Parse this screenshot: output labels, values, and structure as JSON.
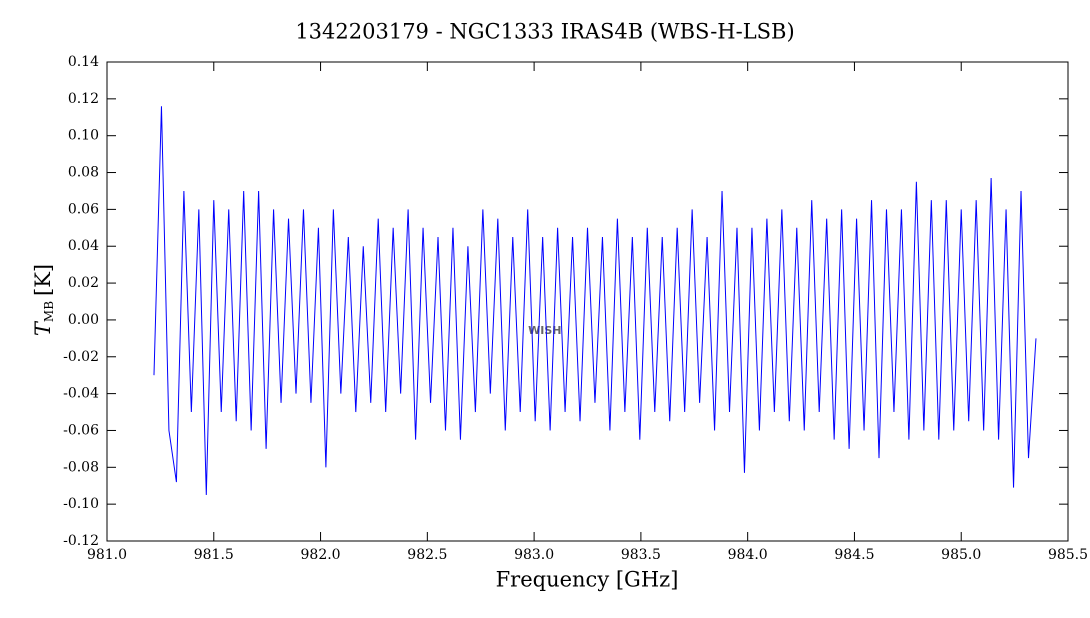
{
  "chart_data": {
    "type": "line",
    "title": "1342203179 - NGC1333 IRAS4B (WBS-H-LSB)",
    "x_label": "Frequency [GHz]",
    "y_label": "T",
    "y_label_sub": "MB",
    "y_label_unit": "[K]",
    "watermark": "WISH",
    "color": "#0000ff",
    "xlim": [
      981.0,
      985.5
    ],
    "xticks": [
      {
        "value": 981.0,
        "label": "981.0"
      },
      981.5,
      {
        "value": 982.0,
        "label": "982.0"
      },
      982.5,
      {
        "value": 983.0,
        "label": "983.0"
      },
      983.5,
      {
        "value": 984.0,
        "label": "984.0"
      },
      984.5,
      {
        "value": 985.0,
        "label": "985.0"
      },
      985.5
    ],
    "ylim": [
      -0.12,
      0.14
    ],
    "yticks": [
      -0.12,
      {
        "value": -0.1,
        "label": "-0.10"
      },
      -0.08,
      -0.06,
      -0.04,
      -0.02,
      {
        "value": 0,
        "label": "0.00"
      },
      0.02,
      0.04,
      0.06,
      0.08,
      {
        "value": 0.1,
        "label": "0.10"
      },
      0.12,
      0.14
    ],
    "x": [
      981.22,
      981.255,
      981.29,
      981.325,
      981.36,
      981.395,
      981.43,
      981.465,
      981.5,
      981.535,
      981.57,
      981.605,
      981.64,
      981.675,
      981.71,
      981.745,
      981.78,
      981.815,
      981.85,
      981.885,
      981.92,
      981.955,
      981.99,
      982.025,
      982.06,
      982.095,
      982.13,
      982.165,
      982.2,
      982.235,
      982.27,
      982.305,
      982.34,
      982.375,
      982.41,
      982.445,
      982.48,
      982.515,
      982.55,
      982.585,
      982.62,
      982.655,
      982.69,
      982.725,
      982.76,
      982.795,
      982.83,
      982.865,
      982.9,
      982.935,
      982.97,
      983.005,
      983.04,
      983.075,
      983.11,
      983.145,
      983.18,
      983.215,
      983.25,
      983.285,
      983.32,
      983.355,
      983.39,
      983.425,
      983.46,
      983.495,
      983.53,
      983.565,
      983.6,
      983.635,
      983.67,
      983.705,
      983.74,
      983.775,
      983.81,
      983.845,
      983.88,
      983.915,
      983.95,
      983.985,
      984.02,
      984.055,
      984.09,
      984.125,
      984.16,
      984.195,
      984.23,
      984.265,
      984.3,
      984.335,
      984.37,
      984.405,
      984.44,
      984.475,
      984.51,
      984.545,
      984.58,
      984.615,
      984.65,
      984.685,
      984.72,
      984.755,
      984.79,
      984.825,
      984.86,
      984.895,
      984.93,
      984.965,
      985.0,
      985.035,
      985.07,
      985.105,
      985.14,
      985.175,
      985.21,
      985.245,
      985.28,
      985.315,
      985.35
    ],
    "values": [
      -0.03,
      0.116,
      -0.06,
      -0.088,
      0.07,
      -0.05,
      0.06,
      -0.095,
      0.065,
      -0.05,
      0.06,
      -0.055,
      0.07,
      -0.06,
      0.07,
      -0.07,
      0.06,
      -0.045,
      0.055,
      -0.04,
      0.06,
      -0.045,
      0.05,
      -0.08,
      0.06,
      -0.04,
      0.045,
      -0.05,
      0.04,
      -0.045,
      0.055,
      -0.05,
      0.05,
      -0.04,
      0.06,
      -0.065,
      0.05,
      -0.045,
      0.045,
      -0.06,
      0.05,
      -0.065,
      0.04,
      -0.05,
      0.06,
      -0.04,
      0.055,
      -0.06,
      0.045,
      -0.05,
      0.06,
      -0.055,
      0.045,
      -0.06,
      0.05,
      -0.05,
      0.045,
      -0.055,
      0.05,
      -0.045,
      0.045,
      -0.06,
      0.055,
      -0.05,
      0.045,
      -0.065,
      0.05,
      -0.05,
      0.045,
      -0.055,
      0.05,
      -0.05,
      0.06,
      -0.045,
      0.045,
      -0.06,
      0.07,
      -0.05,
      0.05,
      -0.083,
      0.05,
      -0.06,
      0.055,
      -0.05,
      0.06,
      -0.055,
      0.05,
      -0.06,
      0.065,
      -0.05,
      0.055,
      -0.065,
      0.06,
      -0.07,
      0.055,
      -0.06,
      0.065,
      -0.075,
      0.06,
      -0.05,
      0.06,
      -0.065,
      0.075,
      -0.06,
      0.065,
      -0.065,
      0.065,
      -0.06,
      0.06,
      -0.055,
      0.065,
      -0.06,
      0.077,
      -0.065,
      0.06,
      -0.091,
      0.07,
      -0.075,
      -0.01
    ]
  }
}
